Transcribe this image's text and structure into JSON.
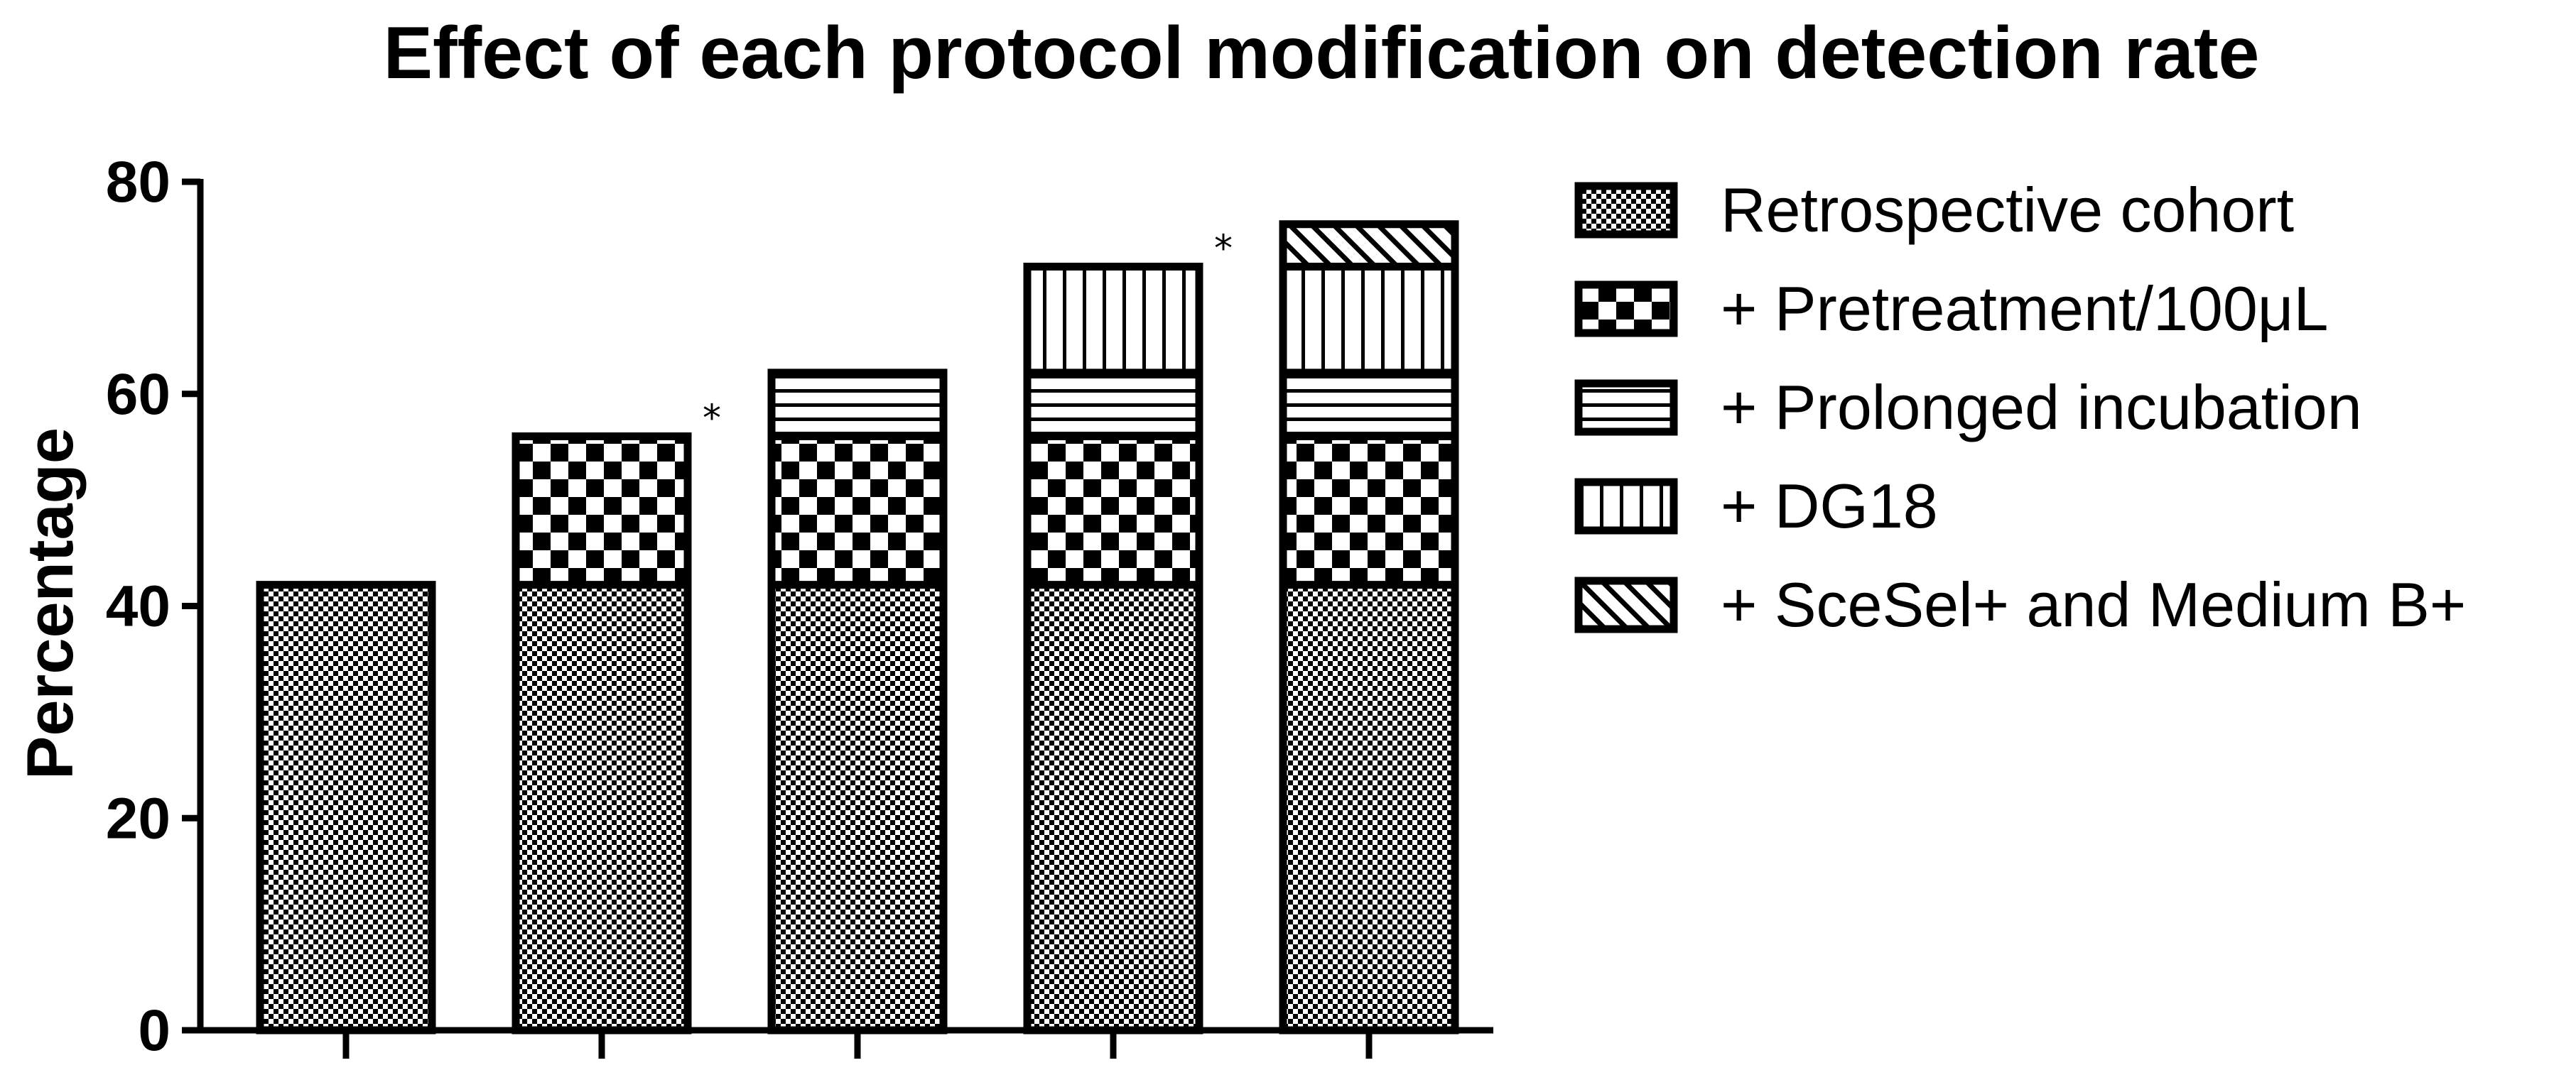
{
  "chart_data": {
    "type": "bar",
    "stacked": true,
    "title": "Effect of each protocol modification on detection rate",
    "xlabel": "",
    "ylabel": "Percentage",
    "ylim": [
      0,
      80
    ],
    "yticks": [
      0,
      20,
      40,
      60,
      80
    ],
    "categories": [
      "",
      "",
      "",
      "",
      ""
    ],
    "series": [
      {
        "name": "Retrospective cohort",
        "pattern": "fine-checker",
        "values": [
          42,
          42,
          42,
          42,
          42
        ]
      },
      {
        "name": "+ Pretreatment/100μL",
        "pattern": "coarse-checker",
        "values": [
          0,
          14,
          14,
          14,
          14
        ]
      },
      {
        "name": "+ Prolonged incubation",
        "pattern": "horizontal-lines",
        "values": [
          0,
          0,
          6,
          6,
          6
        ]
      },
      {
        "name": "+ DG18",
        "pattern": "vertical-lines",
        "values": [
          0,
          0,
          0,
          10,
          10
        ]
      },
      {
        "name": "+ SceSel+ and Medium B+",
        "pattern": "diagonal-lines",
        "values": [
          0,
          0,
          0,
          0,
          4
        ]
      }
    ],
    "annotations": [
      {
        "text": "*",
        "category_index": 1
      },
      {
        "text": "*",
        "category_index": 3
      }
    ],
    "grid": false,
    "legend_position": "right",
    "colors": {
      "ink": "#000000",
      "background": "#ffffff"
    }
  }
}
